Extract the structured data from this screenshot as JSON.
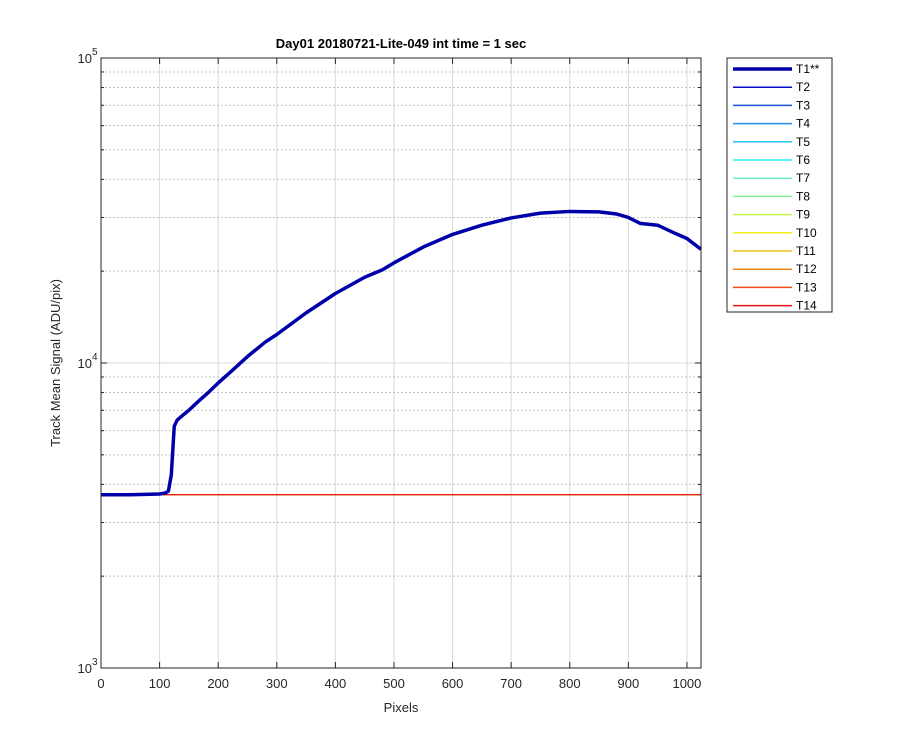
{
  "chart_data": {
    "type": "line",
    "title": "Day01 20180721-Lite-049 int time = 1 sec",
    "xlabel": "Pixels",
    "ylabel": "Track Mean Signal (ADU/pix)",
    "xlim": [
      0,
      1024
    ],
    "ylim": [
      1000,
      100000
    ],
    "yscale": "log",
    "grid": true,
    "legend_position": "outside-right-top",
    "x_ticks": [
      "0",
      "100",
      "200",
      "300",
      "400",
      "500",
      "600",
      "700",
      "800",
      "900",
      "1000"
    ],
    "y_ticks": [
      {
        "base": "10",
        "exp": "3"
      },
      {
        "base": "10",
        "exp": "4"
      },
      {
        "base": "10",
        "exp": "5"
      }
    ],
    "series": [
      {
        "name": "T1**",
        "color": "#0000aa",
        "emphasis": true,
        "x": [
          0,
          50,
          100,
          110,
          115,
          120,
          125,
          130,
          140,
          150,
          160,
          170,
          180,
          200,
          220,
          250,
          280,
          300,
          350,
          400,
          450,
          480,
          500,
          550,
          600,
          650,
          700,
          750,
          800,
          850,
          880,
          900,
          920,
          950,
          980,
          1000,
          1024
        ],
        "y": [
          3700,
          3700,
          3720,
          3750,
          3800,
          4300,
          6200,
          6500,
          6750,
          7000,
          7300,
          7600,
          7900,
          8600,
          9300,
          10500,
          11700,
          12400,
          14600,
          16900,
          19100,
          20200,
          21300,
          24000,
          26400,
          28300,
          29900,
          31000,
          31400,
          31300,
          30800,
          30000,
          28700,
          28300,
          26600,
          25600,
          23600
        ]
      },
      {
        "name": "T2",
        "color": "#0a0acc",
        "x": [
          0,
          1024
        ],
        "y": [
          3700,
          3700
        ]
      },
      {
        "name": "T3",
        "color": "#1a4fd8",
        "x": [
          0,
          1024
        ],
        "y": [
          3700,
          3700
        ]
      },
      {
        "name": "T4",
        "color": "#1f8ff2",
        "x": [
          0,
          1024
        ],
        "y": [
          3700,
          3700
        ]
      },
      {
        "name": "T5",
        "color": "#22c8f2",
        "x": [
          0,
          1024
        ],
        "y": [
          3700,
          3700
        ]
      },
      {
        "name": "T6",
        "color": "#2ef0ee",
        "x": [
          0,
          1024
        ],
        "y": [
          3700,
          3700
        ]
      },
      {
        "name": "T7",
        "color": "#6ff2c8",
        "x": [
          0,
          1024
        ],
        "y": [
          3700,
          3700
        ]
      },
      {
        "name": "T8",
        "color": "#8cf291",
        "x": [
          0,
          1024
        ],
        "y": [
          3700,
          3700
        ]
      },
      {
        "name": "T9",
        "color": "#c2f24e",
        "x": [
          0,
          1024
        ],
        "y": [
          3700,
          3700
        ]
      },
      {
        "name": "T10",
        "color": "#f2f21a",
        "x": [
          0,
          1024
        ],
        "y": [
          3700,
          3700
        ]
      },
      {
        "name": "T11",
        "color": "#f2bd1a",
        "x": [
          0,
          1024
        ],
        "y": [
          3700,
          3700
        ]
      },
      {
        "name": "T12",
        "color": "#f2851a",
        "x": [
          0,
          1024
        ],
        "y": [
          3700,
          3700
        ]
      },
      {
        "name": "T13",
        "color": "#f24a1a",
        "x": [
          0,
          1024
        ],
        "y": [
          3700,
          3700
        ]
      },
      {
        "name": "T14",
        "color": "#e61414",
        "x": [
          0,
          1024
        ],
        "y": [
          3700,
          3700
        ]
      }
    ]
  }
}
